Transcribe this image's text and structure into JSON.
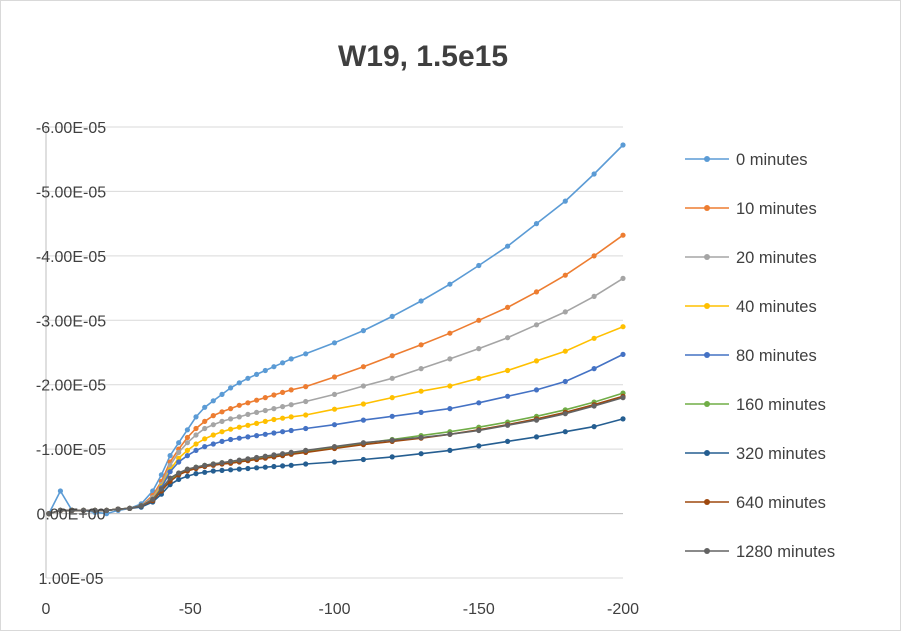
{
  "chart_data": {
    "type": "line",
    "title": "W19, 1.5e15",
    "xlabel": "",
    "ylabel": "",
    "xlim": [
      0,
      -200
    ],
    "ylim": [
      1e-05,
      -6e-05
    ],
    "x_ticks": [
      0,
      -50,
      -100,
      -150,
      -200
    ],
    "x_tick_labels": [
      "0",
      "-50",
      "-100",
      "-150",
      "-200"
    ],
    "y_ticks": [
      -6e-05,
      -5e-05,
      -4e-05,
      -3e-05,
      -2e-05,
      -1e-05,
      0.0,
      1e-05
    ],
    "y_tick_labels": [
      "-6.00E-05",
      "-5.00E-05",
      "-4.00E-05",
      "-3.00E-05",
      "-2.00E-05",
      "-1.00E-05",
      "0.00E+00",
      "1.00E-05"
    ],
    "grid": "horizontal",
    "legend_position": "right",
    "x": [
      -1,
      -5,
      -9,
      -13,
      -17,
      -21,
      -25,
      -29,
      -33,
      -37,
      -40,
      -43,
      -46,
      -49,
      -52,
      -55,
      -58,
      -61,
      -64,
      -67,
      -70,
      -73,
      -76,
      -79,
      -82,
      -85,
      -90,
      -100,
      -110,
      -120,
      -130,
      -140,
      -150,
      -160,
      -170,
      -180,
      -190,
      -200
    ],
    "series": [
      {
        "name": "0 minutes",
        "color": "#5b9bd5",
        "values": [
          0.0,
          -3.5e-06,
          -5e-07,
          -5e-07,
          -2e-07,
          -0.0,
          -5e-07,
          -8e-07,
          -1.5e-06,
          -3.5e-06,
          -6e-06,
          -9e-06,
          -1.1e-05,
          -1.3e-05,
          -1.5e-05,
          -1.65e-05,
          -1.75e-05,
          -1.85e-05,
          -1.95e-05,
          -2.03e-05,
          -2.1e-05,
          -2.16e-05,
          -2.22e-05,
          -2.28e-05,
          -2.34e-05,
          -2.4e-05,
          -2.48e-05,
          -2.65e-05,
          -2.84e-05,
          -3.06e-05,
          -3.3e-05,
          -3.56e-05,
          -3.85e-05,
          -4.15e-05,
          -4.5e-05,
          -4.85e-05,
          -5.27e-05,
          -5.72e-05
        ]
      },
      {
        "name": "10 minutes",
        "color": "#ed7d31",
        "values": [
          0.0,
          -5e-07,
          -5e-07,
          -5e-07,
          -5e-07,
          -5e-07,
          -7e-07,
          -8e-07,
          -1.2e-06,
          -2.8e-06,
          -5e-06,
          -8e-06,
          -1e-05,
          -1.18e-05,
          -1.32e-05,
          -1.43e-05,
          -1.52e-05,
          -1.58e-05,
          -1.63e-05,
          -1.68e-05,
          -1.72e-05,
          -1.76e-05,
          -1.8e-05,
          -1.84e-05,
          -1.88e-05,
          -1.92e-05,
          -1.97e-05,
          -2.12e-05,
          -2.28e-05,
          -2.45e-05,
          -2.62e-05,
          -2.8e-05,
          -3e-05,
          -3.2e-05,
          -3.44e-05,
          -3.7e-05,
          -4e-05,
          -4.32e-05
        ]
      },
      {
        "name": "20 minutes",
        "color": "#a5a5a5",
        "values": [
          0.0,
          -5e-07,
          -5e-07,
          -5e-07,
          -5e-07,
          -5e-07,
          -7e-07,
          -8e-07,
          -1.2e-06,
          -2.5e-06,
          -4.5e-06,
          -7.5e-06,
          -9.5e-06,
          -1.1e-05,
          -1.22e-05,
          -1.32e-05,
          -1.38e-05,
          -1.43e-05,
          -1.47e-05,
          -1.5e-05,
          -1.54e-05,
          -1.57e-05,
          -1.6e-05,
          -1.63e-05,
          -1.66e-05,
          -1.69e-05,
          -1.74e-05,
          -1.85e-05,
          -1.98e-05,
          -2.1e-05,
          -2.25e-05,
          -2.4e-05,
          -2.56e-05,
          -2.73e-05,
          -2.93e-05,
          -3.13e-05,
          -3.37e-05,
          -3.65e-05
        ]
      },
      {
        "name": "40 minutes",
        "color": "#ffc000",
        "values": [
          0.0,
          -5e-07,
          -5e-07,
          -5e-07,
          -5e-07,
          -5e-07,
          -7e-07,
          -8e-07,
          -1.2e-06,
          -2.2e-06,
          -4.2e-06,
          -6.8e-06,
          -8.6e-06,
          -9.8e-06,
          -1.08e-05,
          -1.16e-05,
          -1.22e-05,
          -1.27e-05,
          -1.31e-05,
          -1.34e-05,
          -1.37e-05,
          -1.4e-05,
          -1.43e-05,
          -1.46e-05,
          -1.48e-05,
          -1.5e-05,
          -1.53e-05,
          -1.62e-05,
          -1.7e-05,
          -1.8e-05,
          -1.9e-05,
          -1.98e-05,
          -2.1e-05,
          -2.22e-05,
          -2.37e-05,
          -2.52e-05,
          -2.72e-05,
          -2.9e-05
        ]
      },
      {
        "name": "80 minutes",
        "color": "#4472c4",
        "values": [
          0.0,
          -5e-07,
          -5e-07,
          -5e-07,
          -5e-07,
          -5e-07,
          -7e-07,
          -8e-07,
          -1.2e-06,
          -2e-06,
          -4e-06,
          -6.5e-06,
          -8e-06,
          -9e-06,
          -9.8e-06,
          -1.04e-05,
          -1.08e-05,
          -1.12e-05,
          -1.15e-05,
          -1.17e-05,
          -1.19e-05,
          -1.21e-05,
          -1.23e-05,
          -1.25e-05,
          -1.27e-05,
          -1.29e-05,
          -1.32e-05,
          -1.38e-05,
          -1.45e-05,
          -1.51e-05,
          -1.57e-05,
          -1.63e-05,
          -1.72e-05,
          -1.82e-05,
          -1.92e-05,
          -2.05e-05,
          -2.25e-05,
          -2.47e-05
        ]
      },
      {
        "name": "160 minutes",
        "color": "#70ad47",
        "values": [
          0.0,
          -5e-07,
          -5e-07,
          -5e-07,
          -5e-07,
          -5e-07,
          -7e-07,
          -8e-07,
          -1.2e-06,
          -2e-06,
          -3.5e-06,
          -5.2e-06,
          -6.2e-06,
          -6.8e-06,
          -7.2e-06,
          -7.5e-06,
          -7.7e-06,
          -7.9e-06,
          -8e-06,
          -8.2e-06,
          -8.4e-06,
          -8.6e-06,
          -8.8e-06,
          -9e-06,
          -9.2e-06,
          -9.4e-06,
          -9.7e-06,
          -1.03e-05,
          -1.09e-05,
          -1.15e-05,
          -1.21e-05,
          -1.27e-05,
          -1.34e-05,
          -1.42e-05,
          -1.51e-05,
          -1.61e-05,
          -1.73e-05,
          -1.87e-05
        ]
      },
      {
        "name": "320 minutes",
        "color": "#255e91",
        "values": [
          0.0,
          -5e-07,
          -5e-07,
          -5e-07,
          -5e-07,
          -5e-07,
          -7e-07,
          -8e-07,
          -1e-06,
          -1.8e-06,
          -3e-06,
          -4.5e-06,
          -5.3e-06,
          -5.8e-06,
          -6.2e-06,
          -6.4e-06,
          -6.6e-06,
          -6.7e-06,
          -6.8e-06,
          -6.9e-06,
          -7e-06,
          -7.1e-06,
          -7.2e-06,
          -7.3e-06,
          -7.4e-06,
          -7.5e-06,
          -7.7e-06,
          -8e-06,
          -8.4e-06,
          -8.8e-06,
          -9.3e-06,
          -9.8e-06,
          -1.05e-05,
          -1.12e-05,
          -1.19e-05,
          -1.27e-05,
          -1.35e-05,
          -1.47e-05
        ]
      },
      {
        "name": "640 minutes",
        "color": "#9e480e",
        "values": [
          0.0,
          -5e-07,
          -5e-07,
          -5e-07,
          -5e-07,
          -5e-07,
          -7e-07,
          -8e-07,
          -1.2e-06,
          -2e-06,
          -3.5e-06,
          -5e-06,
          -6e-06,
          -6.6e-06,
          -7e-06,
          -7.3e-06,
          -7.5e-06,
          -7.7e-06,
          -7.8e-06,
          -8e-06,
          -8.2e-06,
          -8.4e-06,
          -8.6e-06,
          -8.8e-06,
          -9e-06,
          -9.2e-06,
          -9.5e-06,
          -1.01e-05,
          -1.07e-05,
          -1.12e-05,
          -1.17e-05,
          -1.23e-05,
          -1.3e-05,
          -1.38e-05,
          -1.47e-05,
          -1.57e-05,
          -1.69e-05,
          -1.82e-05
        ]
      },
      {
        "name": "1280 minutes",
        "color": "#636363",
        "values": [
          0.0,
          -5e-07,
          -5e-07,
          -5e-07,
          -5e-07,
          -5e-07,
          -7e-07,
          -8e-07,
          -1.2e-06,
          -2.2e-06,
          -3.8e-06,
          -5.5e-06,
          -6.3e-06,
          -6.9e-06,
          -7.2e-06,
          -7.5e-06,
          -7.7e-06,
          -7.9e-06,
          -8.1e-06,
          -8.3e-06,
          -8.5e-06,
          -8.7e-06,
          -8.9e-06,
          -9.1e-06,
          -9.3e-06,
          -9.5e-06,
          -9.8e-06,
          -1.04e-05,
          -1.1e-05,
          -1.14e-05,
          -1.18e-05,
          -1.23e-05,
          -1.29e-05,
          -1.37e-05,
          -1.45e-05,
          -1.55e-05,
          -1.67e-05,
          -1.8e-05
        ]
      }
    ]
  }
}
